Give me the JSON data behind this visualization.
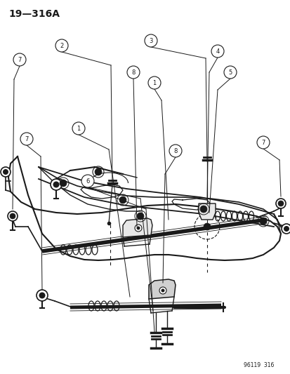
{
  "title": "19—316A",
  "watermark": "96119  316",
  "bg_color": "#ffffff",
  "line_color": "#1a1a1a",
  "title_fontsize": 10,
  "fig_width": 4.14,
  "fig_height": 5.33,
  "dpi": 100
}
